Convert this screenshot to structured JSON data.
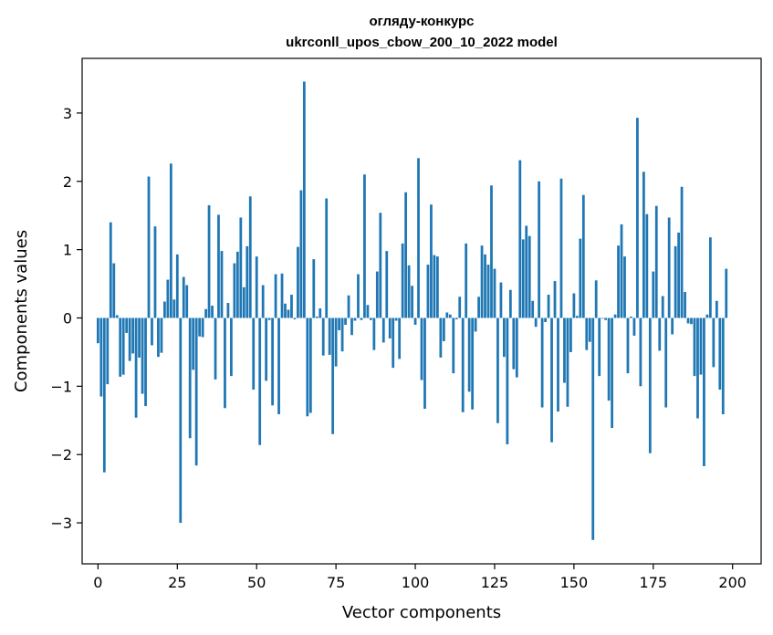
{
  "chart_data": {
    "type": "bar",
    "title_line1": "огляду-конкурс",
    "title_line2": "ukrconll_upos_cbow_200_10_2022 model",
    "xlabel": "Vector components",
    "ylabel": "Components values",
    "xlim": [
      -5,
      209
    ],
    "ylim": [
      -3.6,
      3.8
    ],
    "xticks": [
      0,
      25,
      50,
      75,
      100,
      125,
      150,
      175,
      200
    ],
    "yticks": [
      -3,
      -2,
      -1,
      0,
      1,
      2,
      3
    ],
    "ytick_labels": [
      "−3",
      "−2",
      "−1",
      "0",
      "1",
      "2",
      "3"
    ],
    "bar_color": "#1f77b4",
    "values": [
      -0.37,
      -1.15,
      -2.26,
      -0.97,
      1.4,
      0.8,
      0.04,
      -0.86,
      -0.83,
      -0.22,
      -0.63,
      -0.52,
      -1.46,
      -0.58,
      -1.11,
      -1.29,
      2.07,
      -0.4,
      1.34,
      -0.57,
      -0.51,
      0.24,
      0.56,
      2.26,
      0.27,
      0.93,
      -3.0,
      0.6,
      0.48,
      -1.76,
      -0.76,
      -2.16,
      -0.27,
      -0.28,
      0.13,
      1.65,
      0.18,
      -0.9,
      1.51,
      0.98,
      -1.32,
      0.22,
      -0.85,
      0.8,
      0.97,
      1.47,
      0.45,
      1.05,
      1.78,
      -1.05,
      0.9,
      -1.86,
      0.48,
      -0.92,
      -0.03,
      -1.28,
      0.64,
      -1.41,
      0.65,
      0.21,
      0.12,
      0.34,
      -0.02,
      1.04,
      1.87,
      3.46,
      -1.44,
      -1.39,
      0.86,
      0.02,
      0.14,
      -0.55,
      1.75,
      -0.54,
      -1.7,
      -0.71,
      -0.18,
      -0.49,
      -0.1,
      0.33,
      -0.25,
      -0.04,
      0.64,
      -0.03,
      2.1,
      0.19,
      -0.03,
      -0.47,
      0.68,
      1.54,
      -0.36,
      0.98,
      -0.3,
      -0.73,
      -0.04,
      -0.6,
      1.09,
      1.84,
      0.77,
      0.47,
      -0.1,
      2.34,
      -0.91,
      -1.33,
      0.78,
      1.66,
      0.92,
      0.9,
      -0.58,
      -0.34,
      0.08,
      0.05,
      -0.81,
      -0.02,
      0.31,
      -1.38,
      1.09,
      -1.08,
      -1.34,
      -0.2,
      0.31,
      1.06,
      0.93,
      0.78,
      1.94,
      0.72,
      -1.54,
      0.52,
      -0.57,
      -1.85,
      0.41,
      -0.75,
      -0.87,
      2.31,
      1.15,
      1.35,
      1.2,
      0.25,
      -0.13,
      2.0,
      -1.31,
      -0.06,
      0.34,
      -1.82,
      0.54,
      -1.37,
      2.04,
      -0.95,
      -1.3,
      -0.5,
      0.36,
      0.03,
      1.16,
      1.8,
      -0.47,
      -0.35,
      -3.25,
      0.55,
      -0.85,
      -0.01,
      -0.03,
      -1.21,
      -1.61,
      0.05,
      1.06,
      1.37,
      0.9,
      -0.81,
      0.02,
      -0.26,
      2.93,
      -1.0,
      2.14,
      1.52,
      -1.98,
      0.68,
      1.64,
      -0.48,
      0.32,
      -1.31,
      1.47,
      -0.24,
      1.05,
      1.25,
      1.92,
      0.38,
      -0.08,
      -0.09,
      -0.85,
      -1.47,
      -0.83,
      -2.17,
      0.05,
      1.18,
      -0.72,
      0.25,
      -1.05,
      -1.41,
      0.72
    ]
  }
}
